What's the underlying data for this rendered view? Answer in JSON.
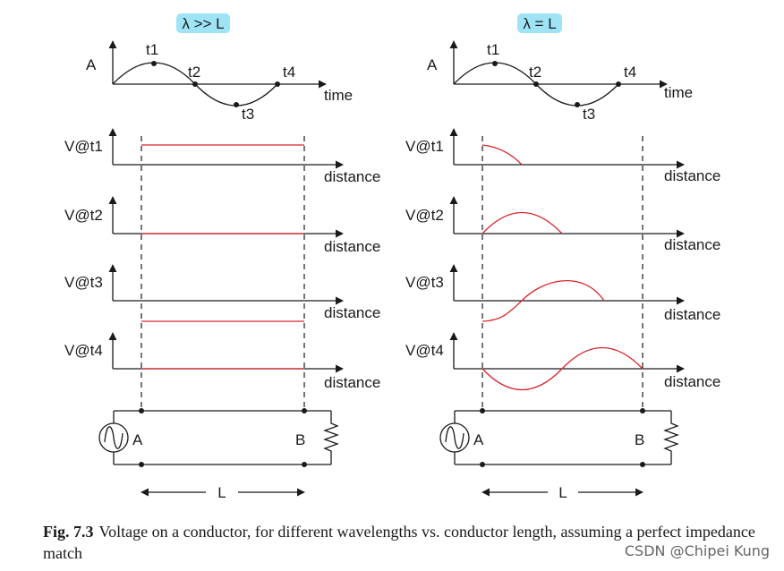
{
  "colors": {
    "signal": "#d9252a",
    "ink": "#1a1a1a",
    "badge": "#9ee4f6"
  },
  "left_panel": {
    "header": "λ >> L",
    "amplitude_label": "A",
    "time_label": "time",
    "points": [
      "t1",
      "t2",
      "t3",
      "t4"
    ],
    "rows": [
      {
        "label": "V@t1",
        "axis": "distance"
      },
      {
        "label": "V@t2",
        "axis": "distance"
      },
      {
        "label": "V@t3",
        "axis": "distance"
      },
      {
        "label": "V@t4",
        "axis": "distance"
      }
    ],
    "end_a": "A",
    "end_b": "B",
    "length_label": "L"
  },
  "right_panel": {
    "header": "λ = L",
    "amplitude_label": "A",
    "time_label": "time",
    "points": [
      "t1",
      "t2",
      "t3",
      "t4"
    ],
    "rows": [
      {
        "label": "V@t1",
        "axis": "distance"
      },
      {
        "label": "V@t2",
        "axis": "distance"
      },
      {
        "label": "V@t3",
        "axis": "distance"
      },
      {
        "label": "V@t4",
        "axis": "distance"
      }
    ],
    "end_a": "A",
    "end_b": "B",
    "length_label": "L"
  },
  "caption": {
    "figure_number": "Fig. 7.3",
    "text": "Voltage on a conductor, for different wavelengths vs. conductor length, assuming a perfect impedance match"
  },
  "watermark": "CSDN @Chipei Kung"
}
